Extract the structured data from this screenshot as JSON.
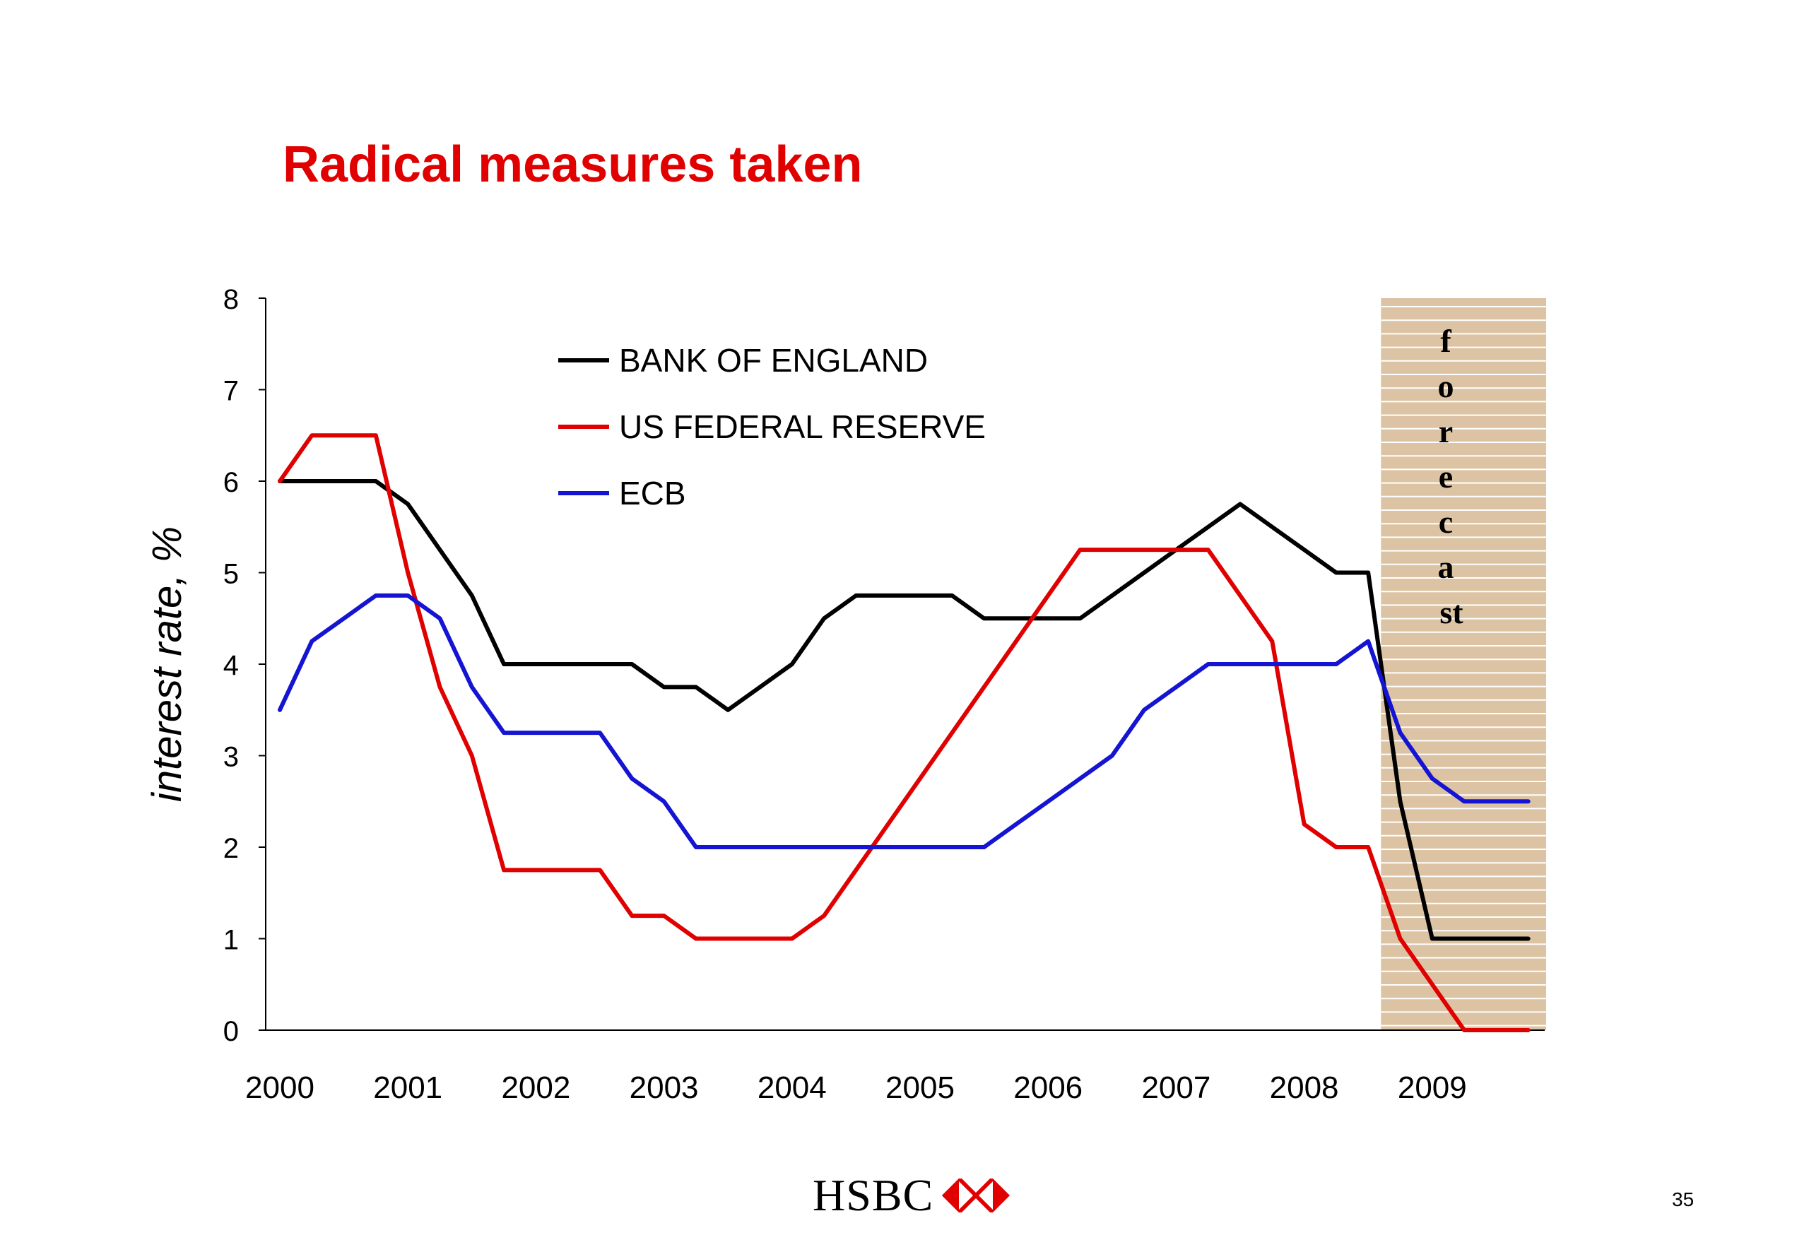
{
  "slide": {
    "title": "Radical measures taken",
    "page_number": "35"
  },
  "brand": {
    "name": "HSBC",
    "logo_icon": "hsbc-hexagon-logo-icon",
    "logo_color": "#e00000"
  },
  "chart_data": {
    "type": "line",
    "title": "",
    "xlabel": "",
    "ylabel": "interest rate, %",
    "xlim": [
      2000,
      2009.9
    ],
    "ylim": [
      0,
      8
    ],
    "x_ticks": [
      "2000",
      "2001",
      "2002",
      "2003",
      "2004",
      "2005",
      "2006",
      "2007",
      "2008",
      "2009"
    ],
    "y_ticks": [
      "0",
      "1",
      "2",
      "3",
      "4",
      "5",
      "6",
      "7",
      "8"
    ],
    "grid": false,
    "legend_position": "top-left",
    "forecast_region": {
      "label": "forecast",
      "label_lines": [
        "f",
        "o",
        "r",
        "e",
        "c",
        "a",
        "st"
      ],
      "x_start": 2008.6,
      "x_end": 2009.9,
      "fill_color": "#dcc3a4",
      "stripe_color": "#ffffff"
    },
    "x": [
      2000.0,
      2000.25,
      2000.5,
      2000.75,
      2001.0,
      2001.25,
      2001.5,
      2001.75,
      2002.0,
      2002.25,
      2002.5,
      2002.75,
      2003.0,
      2003.25,
      2003.5,
      2003.75,
      2004.0,
      2004.25,
      2004.5,
      2004.75,
      2005.0,
      2005.25,
      2005.5,
      2005.75,
      2006.0,
      2006.25,
      2006.5,
      2006.75,
      2007.0,
      2007.25,
      2007.5,
      2007.75,
      2008.0,
      2008.25,
      2008.5,
      2008.75,
      2009.0,
      2009.25,
      2009.5,
      2009.75
    ],
    "series": [
      {
        "name": "BANK OF ENGLAND",
        "color": "#000000",
        "values": [
          6.0,
          6.0,
          6.0,
          6.0,
          5.75,
          5.25,
          4.75,
          4.0,
          4.0,
          4.0,
          4.0,
          4.0,
          3.75,
          3.75,
          3.5,
          3.75,
          4.0,
          4.5,
          4.75,
          4.75,
          4.75,
          4.75,
          4.5,
          4.5,
          4.5,
          4.5,
          4.75,
          5.0,
          5.25,
          5.5,
          5.75,
          5.5,
          5.25,
          5.0,
          5.0,
          2.5,
          1.0,
          1.0,
          1.0,
          1.0
        ]
      },
      {
        "name": "US FEDERAL RESERVE",
        "color": "#e00000",
        "values": [
          6.0,
          6.5,
          6.5,
          6.5,
          5.0,
          3.75,
          3.0,
          1.75,
          1.75,
          1.75,
          1.75,
          1.25,
          1.25,
          1.0,
          1.0,
          1.0,
          1.0,
          1.25,
          1.75,
          2.25,
          2.75,
          3.25,
          3.75,
          4.25,
          4.75,
          5.25,
          5.25,
          5.25,
          5.25,
          5.25,
          4.75,
          4.25,
          2.25,
          2.0,
          2.0,
          1.0,
          0.5,
          0.0,
          0.0,
          0.0
        ]
      },
      {
        "name": "ECB",
        "color": "#1414d2",
        "values": [
          3.5,
          4.25,
          4.5,
          4.75,
          4.75,
          4.5,
          3.75,
          3.25,
          3.25,
          3.25,
          3.25,
          2.75,
          2.5,
          2.0,
          2.0,
          2.0,
          2.0,
          2.0,
          2.0,
          2.0,
          2.0,
          2.0,
          2.0,
          2.25,
          2.5,
          2.75,
          3.0,
          3.5,
          3.75,
          4.0,
          4.0,
          4.0,
          4.0,
          4.0,
          4.25,
          3.25,
          2.75,
          2.5,
          2.5,
          2.5
        ]
      }
    ]
  }
}
